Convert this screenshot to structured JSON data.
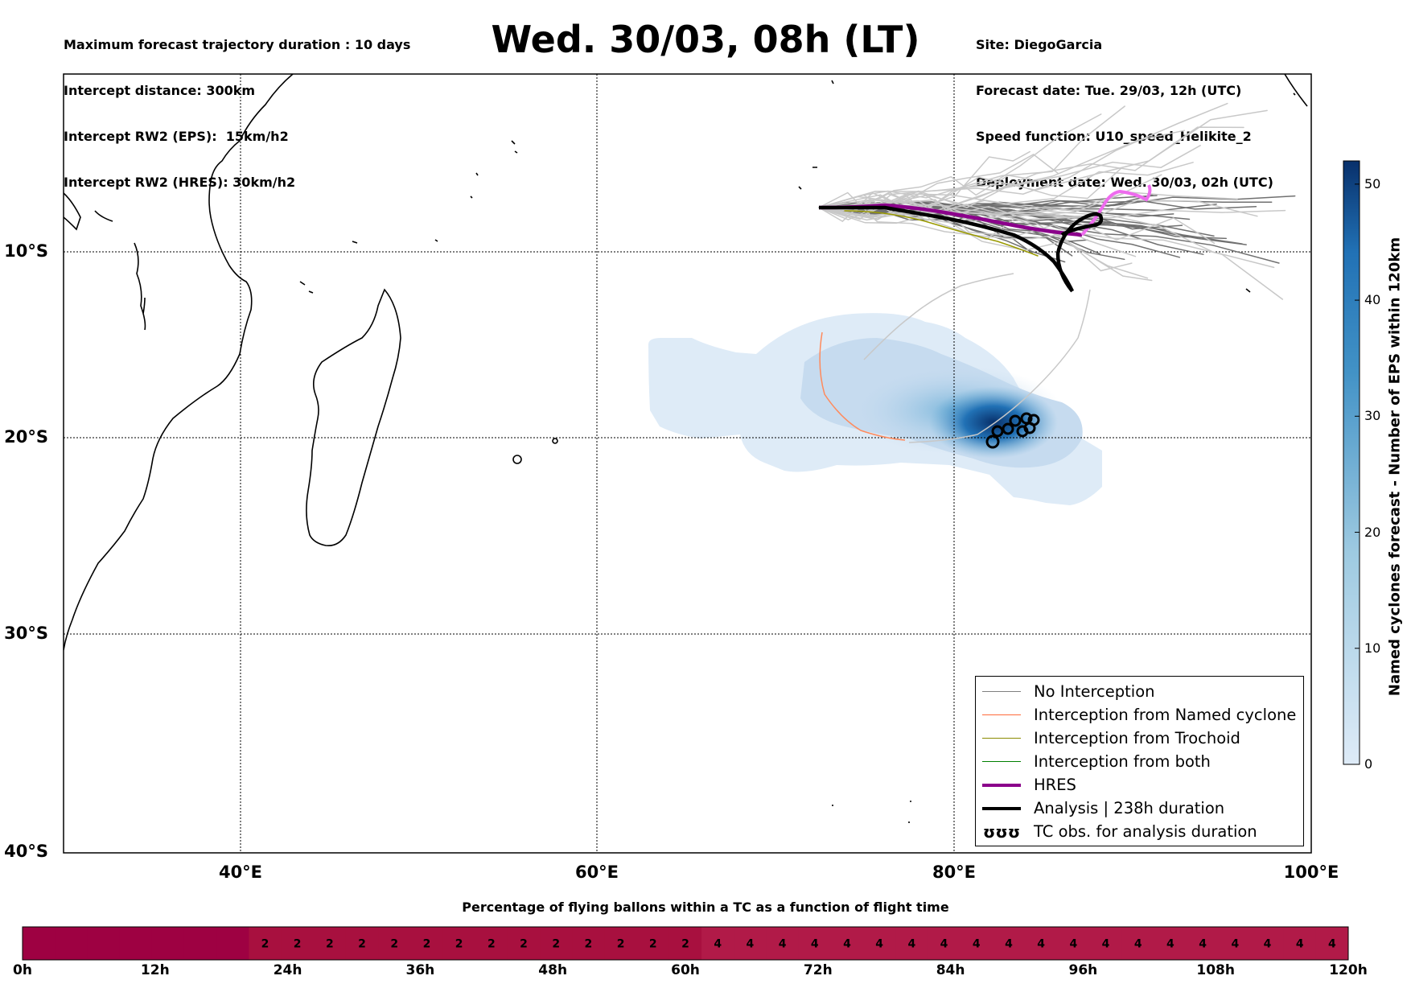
{
  "header_left": [
    "Maximum forecast trajectory duration : 10 days",
    "Intercept distance: 300km",
    "Intercept RW2 (EPS):  15km/h2",
    "Intercept RW2 (HRES): 30km/h2"
  ],
  "header_right": [
    "Site: DiegoGarcia",
    "Forecast date: Tue. 29/03, 12h (UTC)",
    "Speed function: U10_speed_Helikite_2",
    "Deployment date: Wed. 30/03, 02h (UTC)"
  ],
  "title": "Wed. 30/03, 08h (LT)",
  "axes": {
    "lat_labels": [
      "10°S",
      "20°S",
      "30°S",
      "40°S"
    ],
    "lon_labels": [
      "40°E",
      "60°E",
      "80°E",
      "100°E"
    ]
  },
  "legend": [
    {
      "label": "No Interception",
      "color": "#808080",
      "width": 1.5
    },
    {
      "label": "Interception from Named cyclone",
      "color": "#ff6a3a",
      "width": 1.5
    },
    {
      "label": "Interception from Trochoid",
      "color": "#8b8b00",
      "width": 1.5
    },
    {
      "label": "Interception from both",
      "color": "#008000",
      "width": 1.5
    },
    {
      "label": "HRES",
      "color": "#8b008b",
      "width": 4
    },
    {
      "label": "Analysis | 238h duration",
      "color": "#000000",
      "width": 4
    },
    {
      "label": "TC obs. for analysis duration",
      "color": "#000000",
      "symbol": "ʊʊʊ"
    }
  ],
  "colorbar": {
    "title": "Named cyclones forecast - Number of EPS within 120km",
    "ticks": [
      "0",
      "10",
      "20",
      "30",
      "40",
      "50"
    ],
    "color_low": "#deebf7",
    "color_high": "#08306b"
  },
  "flight_bar": {
    "title": "Percentage of flying ballons within a TC as a function of flight time",
    "hour_labels": [
      "0h",
      "12h",
      "24h",
      "36h",
      "48h",
      "60h",
      "72h",
      "84h",
      "96h",
      "108h",
      "120h"
    ],
    "cells": [
      "",
      "",
      "",
      "",
      "",
      "",
      "",
      "2",
      "2",
      "2",
      "2",
      "2",
      "2",
      "2",
      "2",
      "2",
      "2",
      "2",
      "2",
      "2",
      "2",
      "4",
      "4",
      "4",
      "4",
      "4",
      "4",
      "4",
      "4",
      "4",
      "4",
      "4",
      "4",
      "4",
      "4",
      "4",
      "4",
      "4",
      "4",
      "4",
      "4"
    ],
    "colors": {
      "0": "#9e0142",
      "2": "#a8103f",
      "4": "#b11a48"
    }
  }
}
